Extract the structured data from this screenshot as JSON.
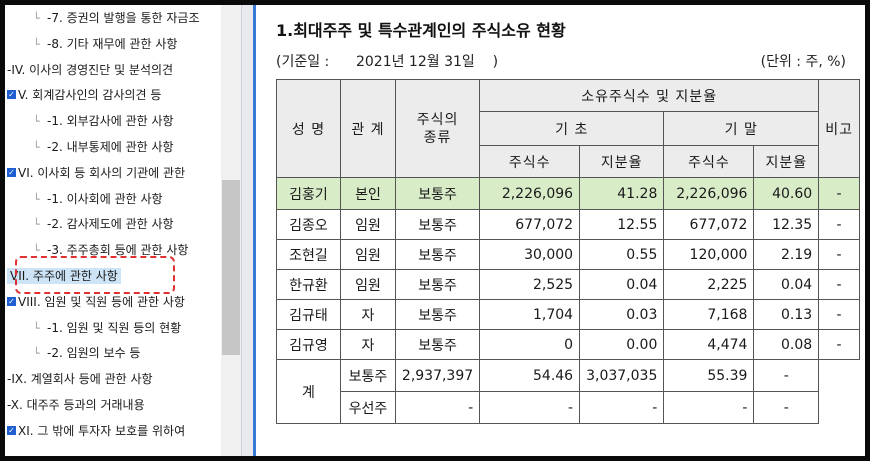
{
  "tree": {
    "items": [
      {
        "label": "-7. 증권의 발행을 통한 자금조",
        "level": 2,
        "checked": false
      },
      {
        "label": "-8. 기타 재무에 관한 사항",
        "level": 2,
        "checked": false
      },
      {
        "label": "-IV. 이사의 경영진단 및 분석의견",
        "level": 1,
        "checked": false
      },
      {
        "label": "V. 회계감사인의 감사의견 등",
        "level": 1,
        "checked": true
      },
      {
        "label": "-1. 외부감사에 관한 사항",
        "level": 2,
        "checked": false
      },
      {
        "label": "-2. 내부통제에 관한 사항",
        "level": 2,
        "checked": false
      },
      {
        "label": "VI. 이사회 등 회사의 기관에 관한",
        "level": 1,
        "checked": true
      },
      {
        "label": "-1. 이사회에 관한 사항",
        "level": 2,
        "checked": false
      },
      {
        "label": "-2. 감사제도에 관한 사항",
        "level": 2,
        "checked": false
      },
      {
        "label": "-3. 주주총회 등에 관한 사항",
        "level": 2,
        "checked": false
      },
      {
        "label": "VII. 주주에 관한 사항",
        "level": 1,
        "checked": false,
        "selected": true
      },
      {
        "label": "VIII. 임원 및 직원 등에 관한 사항",
        "level": 1,
        "checked": true
      },
      {
        "label": "-1. 임원 및 직원 등의 현황",
        "level": 2,
        "checked": false
      },
      {
        "label": "-2. 임원의 보수 등",
        "level": 2,
        "checked": false
      },
      {
        "label": "-IX. 계열회사 등에 관한 사항",
        "level": 1,
        "checked": false
      },
      {
        "label": "-X. 대주주 등과의 거래내용",
        "level": 1,
        "checked": false
      },
      {
        "label": "XI. 그 밖에 투자자 보호를 위하여",
        "level": 1,
        "checked": true
      }
    ]
  },
  "doc": {
    "title": "1.최대주주 및 특수관계인의 주식소유 현황",
    "base_date": "(기준일 :      2021년 12월 31일    )",
    "unit": "(단위 : 주, %)",
    "headers": {
      "name": "성 명",
      "relation": "관 계",
      "stock_type": "주식의\n종류",
      "holdings": "소유주식수 및 지분율",
      "begin": "기 초",
      "end": "기 말",
      "shares": "주식수",
      "ratio": "지분율",
      "note": "비고"
    },
    "rows": [
      {
        "name": "김홍기",
        "relation": "본인",
        "type": "보통주",
        "begin_shares": "2,226,096",
        "begin_ratio": "41.28",
        "end_shares": "2,226,096",
        "end_ratio": "40.60",
        "note": "-"
      },
      {
        "name": "김종오",
        "relation": "임원",
        "type": "보통주",
        "begin_shares": "677,072",
        "begin_ratio": "12.55",
        "end_shares": "677,072",
        "end_ratio": "12.35",
        "note": "-"
      },
      {
        "name": "조현길",
        "relation": "임원",
        "type": "보통주",
        "begin_shares": "30,000",
        "begin_ratio": "0.55",
        "end_shares": "120,000",
        "end_ratio": "2.19",
        "note": "-"
      },
      {
        "name": "한규환",
        "relation": "임원",
        "type": "보통주",
        "begin_shares": "2,525",
        "begin_ratio": "0.04",
        "end_shares": "2,225",
        "end_ratio": "0.04",
        "note": "-"
      },
      {
        "name": "김규태",
        "relation": "자",
        "type": "보통주",
        "begin_shares": "1,704",
        "begin_ratio": "0.03",
        "end_shares": "7,168",
        "end_ratio": "0.13",
        "note": "-"
      },
      {
        "name": "김규영",
        "relation": "자",
        "type": "보통주",
        "begin_shares": "0",
        "begin_ratio": "0.00",
        "end_shares": "4,474",
        "end_ratio": "0.08",
        "note": "-"
      }
    ],
    "total": {
      "label": "계",
      "common": {
        "type": "보통주",
        "begin_shares": "2,937,397",
        "begin_ratio": "54.46",
        "end_shares": "3,037,035",
        "end_ratio": "55.39",
        "note": "-"
      },
      "preferred": {
        "type": "우선주",
        "begin_shares": "-",
        "begin_ratio": "-",
        "end_shares": "-",
        "end_ratio": "-",
        "note": "-"
      }
    }
  },
  "colors": {
    "highlight_row": "#d9ecc8",
    "header_bg": "#ececec",
    "selection_border": "#e03030",
    "checkbox": "#1f5fd1",
    "splitter_accent": "#3a78d6"
  }
}
